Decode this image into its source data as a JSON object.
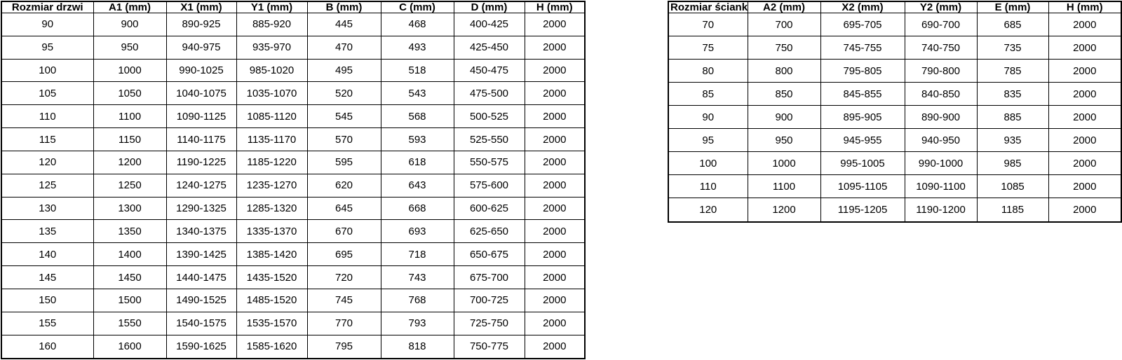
{
  "colors": {
    "border": "#000000",
    "text": "#000000",
    "background": "#ffffff"
  },
  "tables": [
    {
      "name": "door-size-table",
      "headers": [
        "Rozmiar drzwi",
        "A1 (mm)",
        "X1 (mm)",
        "Y1 (mm)",
        "B (mm)",
        "C (mm)",
        "D (mm)",
        "H (mm)"
      ],
      "rows": [
        [
          "90",
          "900",
          "890-925",
          "885-920",
          "445",
          "468",
          "400-425",
          "2000"
        ],
        [
          "95",
          "950",
          "940-975",
          "935-970",
          "470",
          "493",
          "425-450",
          "2000"
        ],
        [
          "100",
          "1000",
          "990-1025",
          "985-1020",
          "495",
          "518",
          "450-475",
          "2000"
        ],
        [
          "105",
          "1050",
          "1040-1075",
          "1035-1070",
          "520",
          "543",
          "475-500",
          "2000"
        ],
        [
          "110",
          "1100",
          "1090-1125",
          "1085-1120",
          "545",
          "568",
          "500-525",
          "2000"
        ],
        [
          "115",
          "1150",
          "1140-1175",
          "1135-1170",
          "570",
          "593",
          "525-550",
          "2000"
        ],
        [
          "120",
          "1200",
          "1190-1225",
          "1185-1220",
          "595",
          "618",
          "550-575",
          "2000"
        ],
        [
          "125",
          "1250",
          "1240-1275",
          "1235-1270",
          "620",
          "643",
          "575-600",
          "2000"
        ],
        [
          "130",
          "1300",
          "1290-1325",
          "1285-1320",
          "645",
          "668",
          "600-625",
          "2000"
        ],
        [
          "135",
          "1350",
          "1340-1375",
          "1335-1370",
          "670",
          "693",
          "625-650",
          "2000"
        ],
        [
          "140",
          "1400",
          "1390-1425",
          "1385-1420",
          "695",
          "718",
          "650-675",
          "2000"
        ],
        [
          "145",
          "1450",
          "1440-1475",
          "1435-1520",
          "720",
          "743",
          "675-700",
          "2000"
        ],
        [
          "150",
          "1500",
          "1490-1525",
          "1485-1520",
          "745",
          "768",
          "700-725",
          "2000"
        ],
        [
          "155",
          "1550",
          "1540-1575",
          "1535-1570",
          "770",
          "793",
          "725-750",
          "2000"
        ],
        [
          "160",
          "1600",
          "1590-1625",
          "1585-1620",
          "795",
          "818",
          "750-775",
          "2000"
        ]
      ]
    },
    {
      "name": "wall-size-table",
      "headers": [
        "Rozmiar ścianki",
        "A2 (mm)",
        "X2 (mm)",
        "Y2 (mm)",
        "E (mm)",
        "H (mm)"
      ],
      "rows": [
        [
          "70",
          "700",
          "695-705",
          "690-700",
          "685",
          "2000"
        ],
        [
          "75",
          "750",
          "745-755",
          "740-750",
          "735",
          "2000"
        ],
        [
          "80",
          "800",
          "795-805",
          "790-800",
          "785",
          "2000"
        ],
        [
          "85",
          "850",
          "845-855",
          "840-850",
          "835",
          "2000"
        ],
        [
          "90",
          "900",
          "895-905",
          "890-900",
          "885",
          "2000"
        ],
        [
          "95",
          "950",
          "945-955",
          "940-950",
          "935",
          "2000"
        ],
        [
          "100",
          "1000",
          "995-1005",
          "990-1000",
          "985",
          "2000"
        ],
        [
          "110",
          "1100",
          "1095-1105",
          "1090-1100",
          "1085",
          "2000"
        ],
        [
          "120",
          "1200",
          "1195-1205",
          "1190-1200",
          "1185",
          "2000"
        ]
      ]
    }
  ]
}
